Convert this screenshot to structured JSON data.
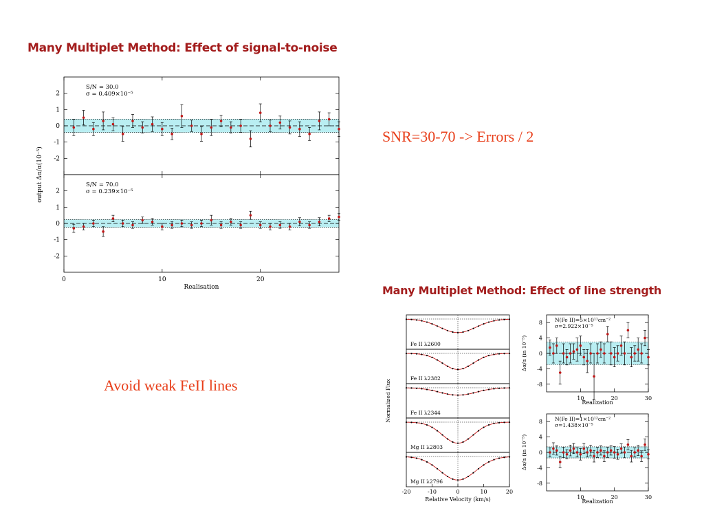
{
  "headings": {
    "snr": "Many Multiplet Method: Effect of signal-to-noise",
    "line_strength": "Many Multiplet Method: Effect of line strength"
  },
  "notes": {
    "snr": "SNR=30-70 -> Errors / 2",
    "feii": "Avoid weak FeII lines"
  },
  "colors": {
    "heading": "#a31d1d",
    "note": "#e8401c",
    "band": "#b9eef2",
    "points": "#c01818"
  },
  "chart_data": [
    {
      "type": "scatter",
      "panel": "S/N = 30.0",
      "label_line1": "S/N = 30.0",
      "label_line2": "σ = 0.409×10⁻⁵",
      "xlabel": "Realisation",
      "ylabel": "output Δα/α(10⁻⁵)",
      "xlim": [
        0,
        28
      ],
      "ylim": [
        -3,
        3
      ],
      "yticks": [
        "2",
        "1",
        "0",
        "-1",
        "-2"
      ],
      "xticks": [
        "0",
        "10",
        "20"
      ],
      "band": [
        -0.409,
        0.409
      ],
      "x": [
        1,
        2,
        3,
        4,
        5,
        6,
        7,
        8,
        9,
        10,
        11,
        12,
        13,
        14,
        15,
        16,
        17,
        18,
        19,
        20,
        21,
        22,
        23,
        24,
        25,
        26,
        27,
        28
      ],
      "y": [
        -0.1,
        0.5,
        -0.2,
        0.3,
        0.1,
        -0.5,
        0.3,
        -0.1,
        0.1,
        -0.2,
        -0.5,
        0.6,
        0.0,
        -0.5,
        -0.1,
        0.3,
        -0.1,
        0.0,
        -0.8,
        0.8,
        0.0,
        0.2,
        -0.1,
        -0.2,
        -0.5,
        0.3,
        0.4,
        -0.2
      ],
      "err": [
        0.5,
        0.45,
        0.4,
        0.55,
        0.4,
        0.45,
        0.4,
        0.35,
        0.45,
        0.4,
        0.35,
        0.7,
        0.35,
        0.45,
        0.5,
        0.35,
        0.35,
        0.4,
        0.5,
        0.55,
        0.35,
        0.4,
        0.4,
        0.45,
        0.4,
        0.55,
        0.4,
        0.45
      ]
    },
    {
      "type": "scatter",
      "panel": "S/N = 70.0",
      "label_line1": "S/N = 70.0",
      "label_line2": "σ = 0.239×10⁻⁵",
      "xlabel": "Realisation",
      "xlim": [
        0,
        28
      ],
      "ylim": [
        -3,
        3
      ],
      "yticks": [
        "2",
        "1",
        "0",
        "-1",
        "-2"
      ],
      "xticks": [
        "0",
        "10",
        "20"
      ],
      "band": [
        -0.239,
        0.239
      ],
      "x": [
        1,
        2,
        3,
        4,
        5,
        6,
        7,
        8,
        9,
        10,
        11,
        12,
        13,
        14,
        15,
        16,
        17,
        18,
        19,
        20,
        21,
        22,
        23,
        24,
        25,
        26,
        27,
        28
      ],
      "y": [
        -0.3,
        -0.2,
        0.0,
        -0.5,
        0.3,
        0.0,
        -0.1,
        0.2,
        0.1,
        -0.2,
        -0.1,
        0.0,
        -0.1,
        0.0,
        0.2,
        -0.1,
        0.1,
        -0.1,
        0.5,
        -0.1,
        -0.2,
        -0.1,
        -0.2,
        0.1,
        -0.1,
        0.1,
        0.3,
        0.4
      ],
      "err": [
        0.25,
        0.2,
        0.2,
        0.3,
        0.2,
        0.2,
        0.2,
        0.2,
        0.2,
        0.2,
        0.2,
        0.2,
        0.2,
        0.2,
        0.3,
        0.2,
        0.2,
        0.2,
        0.25,
        0.2,
        0.2,
        0.2,
        0.2,
        0.25,
        0.2,
        0.25,
        0.2,
        0.2
      ]
    },
    {
      "type": "line",
      "panel": "absorption profiles",
      "xlabel": "Relative Velocity (km/s)",
      "ylabel": "Normalized Flux",
      "xlim": [
        -20,
        20
      ],
      "xticks": [
        "-20",
        "-10",
        "0",
        "10",
        "20"
      ],
      "series": [
        {
          "name": "Fe II λ2600",
          "depth": 0.55,
          "width": 7
        },
        {
          "name": "Fe II λ2382",
          "depth": 0.65,
          "width": 6
        },
        {
          "name": "Fe II λ2344",
          "depth": 0.3,
          "width": 7
        },
        {
          "name": "Mg II λ2803",
          "depth": 0.85,
          "width": 6
        },
        {
          "name": "Mg II λ2796",
          "depth": 0.95,
          "width": 7
        }
      ]
    },
    {
      "type": "scatter",
      "panel": "N(Fe II)=5×10¹¹cm⁻²",
      "label_line1": "N(Fe II)=5×10¹¹cm⁻²",
      "label_line2": "σ=2.922×10⁻⁵",
      "xlabel": "Realization",
      "ylabel": "Δα/α (in 10⁻⁵)",
      "xlim": [
        0,
        30
      ],
      "ylim": [
        -10,
        10
      ],
      "yticks": [
        "8",
        "4",
        "0",
        "-4",
        "-8"
      ],
      "xticks": [
        "10",
        "20",
        "30"
      ],
      "band": [
        -2.922,
        2.922
      ],
      "x": [
        1,
        2,
        3,
        4,
        5,
        6,
        7,
        8,
        9,
        10,
        11,
        12,
        13,
        14,
        15,
        16,
        17,
        18,
        19,
        20,
        21,
        22,
        23,
        24,
        25,
        26,
        27,
        28,
        29,
        30
      ],
      "y": [
        1.5,
        0,
        2,
        -5,
        0,
        -1,
        0,
        0.5,
        1,
        2,
        -1,
        -2,
        0,
        -6,
        0,
        1,
        0,
        5,
        0,
        -1,
        0,
        2,
        0,
        6,
        -1,
        0,
        1,
        0,
        4,
        -1
      ],
      "err": [
        2,
        2.5,
        2,
        3,
        2.5,
        2,
        2.5,
        2,
        3,
        2.5,
        2,
        3,
        2.5,
        6,
        2.5,
        2,
        2.5,
        2,
        3,
        2.5,
        2,
        2.5,
        3,
        2,
        2.5,
        2,
        3,
        2.5,
        2,
        2
      ]
    },
    {
      "type": "scatter",
      "panel": "N(Fe II)=1×10¹²cm⁻²",
      "label_line1": "N(Fe II)=1×10¹²cm⁻²",
      "label_line2": "σ=1.438×10⁻⁵",
      "xlabel": "Realization",
      "ylabel": "Δα/α (in 10⁻⁵)",
      "xlim": [
        0,
        30
      ],
      "ylim": [
        -10,
        10
      ],
      "yticks": [
        "8",
        "4",
        "0",
        "-4",
        "-8"
      ],
      "xticks": [
        "10",
        "20",
        "30"
      ],
      "band": [
        -1.438,
        1.438
      ],
      "x": [
        1,
        2,
        3,
        4,
        5,
        6,
        7,
        8,
        9,
        10,
        11,
        12,
        13,
        14,
        15,
        16,
        17,
        18,
        19,
        20,
        21,
        22,
        23,
        24,
        25,
        26,
        27,
        28,
        29,
        30
      ],
      "y": [
        0,
        1,
        0.5,
        -2.5,
        0,
        -0.5,
        0.5,
        1,
        0,
        -0.5,
        1,
        0,
        0.5,
        -1,
        0,
        0.5,
        -1,
        0,
        0.5,
        0,
        -0.5,
        1,
        0,
        2,
        -1,
        0,
        0.5,
        -1,
        2,
        -0.5
      ],
      "err": [
        1.2,
        1.5,
        1.2,
        1.5,
        1.3,
        1.2,
        1.4,
        1.3,
        1.2,
        1.5,
        1.3,
        1.2,
        1.4,
        1.5,
        1.3,
        1.2,
        1.4,
        1.3,
        1.2,
        1.5,
        1.3,
        1.2,
        1.4,
        1.3,
        1.5,
        1.2,
        1.3,
        1.4,
        1.5,
        1.2
      ]
    }
  ]
}
